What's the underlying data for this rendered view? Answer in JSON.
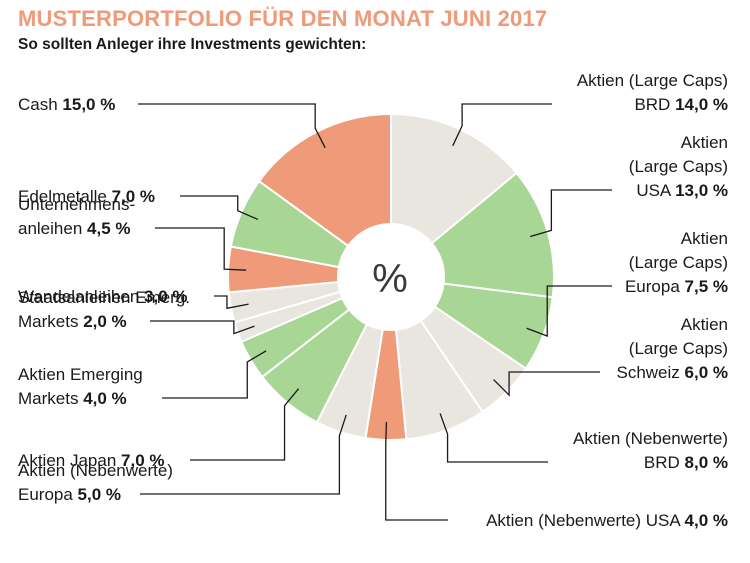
{
  "title": "MUSTERPORTFOLIO FÜR DEN MONAT JUNI 2017",
  "subtitle": "So sollten Anleger ihre Investments gewichten:",
  "center_label": "%",
  "colors": {
    "title": "#ef9a78",
    "salmon": "#ef9a78",
    "green": "#a8d695",
    "beige": "#e9e6df"
  },
  "chart_data": {
    "type": "pie",
    "title": "MUSTERPORTFOLIO FÜR DEN MONAT JUNI 2017",
    "subtitle": "So sollten Anleger ihre Investments gewichten:",
    "center_label": "%",
    "slices": [
      {
        "lines": [
          "Aktien (Large Caps)"
        ],
        "bold_line": "BRD",
        "value_label": "14,0 %",
        "value": 14.0,
        "color": "beige"
      },
      {
        "lines": [
          "Aktien",
          "(Large Caps)"
        ],
        "bold_line": "USA",
        "value_label": "13,0 %",
        "value": 13.0,
        "color": "green"
      },
      {
        "lines": [
          "Aktien",
          "(Large Caps)"
        ],
        "bold_line": "Europa",
        "value_label": "7,5 %",
        "value": 7.5,
        "color": "green"
      },
      {
        "lines": [
          "Aktien",
          "(Large Caps)"
        ],
        "bold_line": "Schweiz",
        "value_label": "6,0 %",
        "value": 6.0,
        "color": "beige"
      },
      {
        "lines": [
          "Aktien (Nebenwerte)"
        ],
        "bold_line": "BRD",
        "value_label": "8,0 %",
        "value": 8.0,
        "color": "beige"
      },
      {
        "lines": [],
        "bold_line": "Aktien (Nebenwerte) USA",
        "value_label": "4,0 %",
        "value": 4.0,
        "color": "salmon"
      },
      {
        "lines": [
          "Aktien (Nebenwerte)"
        ],
        "bold_line": "Europa",
        "value_label": "5,0 %",
        "value": 5.0,
        "color": "beige"
      },
      {
        "lines": [],
        "bold_line": "Aktien Japan",
        "value_label": "7,0 %",
        "value": 7.0,
        "color": "green"
      },
      {
        "lines": [
          "Aktien Emerging"
        ],
        "bold_line": "Markets",
        "value_label": "4,0 %",
        "value": 4.0,
        "color": "green"
      },
      {
        "lines": [
          "Staatsanleihen Emerg."
        ],
        "bold_line": "Markets",
        "value_label": "2,0 %",
        "value": 2.0,
        "color": "beige"
      },
      {
        "lines": [],
        "bold_line": "Wandelanleihen",
        "value_label": "3,0 %",
        "value": 3.0,
        "color": "beige"
      },
      {
        "lines": [
          "Unternehmens-"
        ],
        "bold_line": "anleihen",
        "value_label": "4,5 %",
        "value": 4.5,
        "color": "salmon"
      },
      {
        "lines": [],
        "bold_line": "Edelmetalle",
        "value_label": "7,0 %",
        "value": 7.0,
        "color": "green"
      },
      {
        "lines": [],
        "bold_line": "Cash",
        "value_label": "15,0 %",
        "value": 15.0,
        "color": "salmon"
      }
    ]
  }
}
